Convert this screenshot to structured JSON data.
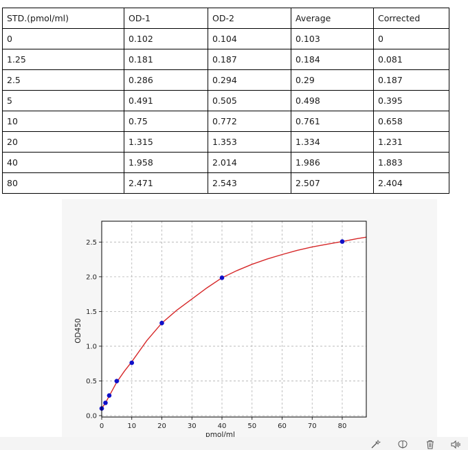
{
  "table": {
    "headers": [
      "STD.(pmol/ml)",
      "OD-1",
      "OD-2",
      "Average",
      "Corrected"
    ],
    "rows": [
      [
        "0",
        "0.102",
        "0.104",
        "0.103",
        "0"
      ],
      [
        "1.25",
        "0.181",
        "0.187",
        "0.184",
        "0.081"
      ],
      [
        "2.5",
        "0.286",
        "0.294",
        "0.29",
        "0.187"
      ],
      [
        "5",
        "0.491",
        "0.505",
        "0.498",
        "0.395"
      ],
      [
        "10",
        "0.75",
        "0.772",
        "0.761",
        "0.658"
      ],
      [
        "20",
        "1.315",
        "1.353",
        "1.334",
        "1.231"
      ],
      [
        "40",
        "1.958",
        "2.014",
        "1.986",
        "1.883"
      ],
      [
        "80",
        "2.471",
        "2.543",
        "2.507",
        "2.404"
      ]
    ]
  },
  "chart_data": {
    "type": "scatter",
    "xlabel": "pmol/ml",
    "ylabel": "OD450",
    "xlim": [
      0,
      88
    ],
    "ylim": [
      -0.02,
      2.8
    ],
    "xticks": [
      "0",
      "10",
      "20",
      "30",
      "40",
      "50",
      "60",
      "70",
      "80"
    ],
    "yticks": [
      "0.0",
      "0.5",
      "1.0",
      "1.5",
      "2.0",
      "2.5"
    ],
    "grid": true,
    "series": [
      {
        "kind": "points",
        "color": "#1010c8",
        "x": [
          0,
          1.25,
          2.5,
          5,
          10,
          20,
          40,
          80
        ],
        "y": [
          0.103,
          0.184,
          0.29,
          0.498,
          0.761,
          1.334,
          1.986,
          2.507
        ]
      },
      {
        "kind": "fit-curve",
        "color": "#d62728",
        "x": [
          0,
          1.25,
          2.5,
          5,
          7.5,
          10,
          15,
          20,
          25,
          30,
          35,
          40,
          45,
          50,
          55,
          60,
          65,
          70,
          75,
          80,
          85,
          88
        ],
        "y": [
          0.103,
          0.185,
          0.283,
          0.483,
          0.637,
          0.778,
          1.08,
          1.334,
          1.52,
          1.68,
          1.84,
          1.986,
          2.09,
          2.18,
          2.255,
          2.32,
          2.38,
          2.43,
          2.47,
          2.507,
          2.55,
          2.57
        ]
      }
    ]
  },
  "toolbar_icons": [
    "magic-wand-icon",
    "brain-icon",
    "trash-icon",
    "volume-icon"
  ]
}
